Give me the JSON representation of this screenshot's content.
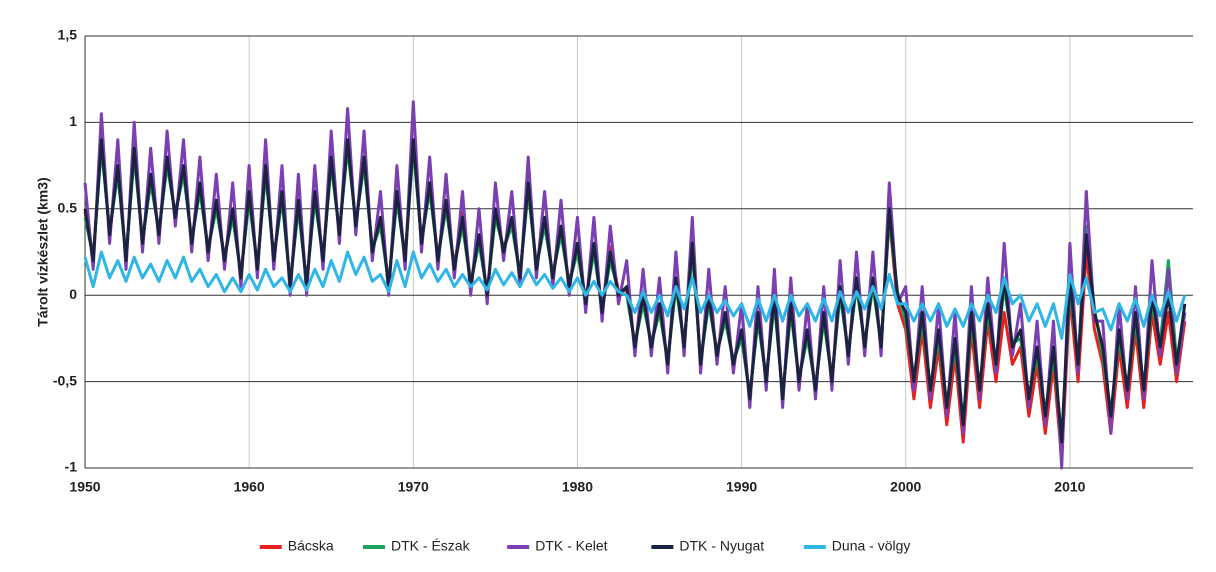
{
  "chart_data": {
    "type": "line",
    "y_label": "Tárolt vízkészlet (km3)",
    "xlim": [
      1950,
      2017.5
    ],
    "xticks": [
      1950,
      1960,
      1970,
      1980,
      1990,
      2000,
      2010
    ],
    "ylim": [
      -1,
      1.5
    ],
    "yticks": [
      {
        "value": -1,
        "label": "-1"
      },
      {
        "value": -0.5,
        "label": "-0,5"
      },
      0,
      0.5,
      1,
      {
        "value": 1.5,
        "label": "1,5"
      }
    ],
    "ylabels_override": null,
    "grid": true,
    "legend": "bottom",
    "x": [
      1950,
      1950.5,
      1951,
      1951.5,
      1952,
      1952.5,
      1953,
      1953.5,
      1954,
      1954.5,
      1955,
      1955.5,
      1956,
      1956.5,
      1957,
      1957.5,
      1958,
      1958.5,
      1959,
      1959.5,
      1960,
      1960.5,
      1961,
      1961.5,
      1962,
      1962.5,
      1963,
      1963.5,
      1964,
      1964.5,
      1965,
      1965.5,
      1966,
      1966.5,
      1967,
      1967.5,
      1968,
      1968.5,
      1969,
      1969.5,
      1970,
      1970.5,
      1971,
      1971.5,
      1972,
      1972.5,
      1973,
      1973.5,
      1974,
      1974.5,
      1975,
      1975.5,
      1976,
      1976.5,
      1977,
      1977.5,
      1978,
      1978.5,
      1979,
      1979.5,
      1980,
      1980.5,
      1981,
      1981.5,
      1982,
      1982.5,
      1983,
      1983.5,
      1984,
      1984.5,
      1985,
      1985.5,
      1986,
      1986.5,
      1987,
      1987.5,
      1988,
      1988.5,
      1989,
      1989.5,
      1990,
      1990.5,
      1991,
      1991.5,
      1992,
      1992.5,
      1993,
      1993.5,
      1994,
      1994.5,
      1995,
      1995.5,
      1996,
      1996.5,
      1997,
      1997.5,
      1998,
      1998.5,
      1999,
      1999.5,
      2000,
      2000.5,
      2001,
      2001.5,
      2002,
      2002.5,
      2003,
      2003.5,
      2004,
      2004.5,
      2005,
      2005.5,
      2006,
      2006.5,
      2007,
      2007.5,
      2008,
      2008.5,
      2009,
      2009.5,
      2010,
      2010.5,
      2011,
      2011.5,
      2012,
      2012.5,
      2013,
      2013.5,
      2014,
      2014.5,
      2015,
      2015.5,
      2016,
      2016.5,
      2017
    ],
    "series": [
      {
        "name": "Bácska",
        "color": "#e8211f",
        "values": [
          0.48,
          0.22,
          0.88,
          0.37,
          0.73,
          0.22,
          0.83,
          0.32,
          0.68,
          0.37,
          0.78,
          0.47,
          0.73,
          0.32,
          0.63,
          0.27,
          0.53,
          0.22,
          0.48,
          0.12,
          0.58,
          0.17,
          0.73,
          0.22,
          0.58,
          0.07,
          0.53,
          0.07,
          0.58,
          0.22,
          0.78,
          0.37,
          0.88,
          0.42,
          0.78,
          0.27,
          0.43,
          0.07,
          0.58,
          0.22,
          0.88,
          0.32,
          0.63,
          0.22,
          0.53,
          0.17,
          0.48,
          0.07,
          0.33,
          0.02,
          0.48,
          0.27,
          0.43,
          0.12,
          0.63,
          0.17,
          0.43,
          0.12,
          0.38,
          0.07,
          0.28,
          -0.03,
          0.28,
          -0.08,
          0.28,
          0.02,
          0.03,
          -0.28,
          -0.02,
          -0.28,
          -0.07,
          -0.38,
          0.08,
          -0.28,
          0.28,
          -0.38,
          -0.02,
          -0.33,
          -0.12,
          -0.38,
          -0.22,
          -0.58,
          -0.12,
          -0.48,
          -0.02,
          -0.58,
          -0.07,
          -0.48,
          -0.22,
          -0.53,
          -0.12,
          -0.48,
          0.03,
          -0.33,
          0.08,
          -0.28,
          0.08,
          -0.28,
          0.45,
          -0.05,
          -0.2,
          -0.6,
          -0.2,
          -0.65,
          -0.3,
          -0.75,
          -0.35,
          -0.85,
          -0.2,
          -0.65,
          -0.15,
          -0.5,
          -0.1,
          -0.4,
          -0.3,
          -0.7,
          -0.4,
          -0.8,
          -0.4,
          -0.95,
          0,
          -0.5,
          0.25,
          -0.2,
          -0.4,
          -0.8,
          -0.3,
          -0.65,
          -0.2,
          -0.65,
          -0.1,
          -0.4,
          -0.1,
          -0.5,
          -0.15
        ]
      },
      {
        "name": "DTK - Észak",
        "color": "#1aa35a",
        "values": [
          0.45,
          0.22,
          0.85,
          0.37,
          0.7,
          0.22,
          0.8,
          0.32,
          0.65,
          0.37,
          0.75,
          0.47,
          0.7,
          0.32,
          0.6,
          0.27,
          0.5,
          0.22,
          0.45,
          0.12,
          0.55,
          0.17,
          0.7,
          0.22,
          0.55,
          0.07,
          0.5,
          0.07,
          0.55,
          0.22,
          0.75,
          0.37,
          0.85,
          0.42,
          0.75,
          0.27,
          0.4,
          0.07,
          0.55,
          0.22,
          0.85,
          0.32,
          0.6,
          0.22,
          0.5,
          0.17,
          0.4,
          0.07,
          0.3,
          0.02,
          0.45,
          0.27,
          0.4,
          0.12,
          0.6,
          0.17,
          0.4,
          0.12,
          0.35,
          0.07,
          0.25,
          -0.03,
          0.25,
          -0.08,
          0.2,
          0.02,
          0,
          -0.28,
          -0.05,
          -0.28,
          -0.1,
          -0.38,
          0.05,
          -0.28,
          0.25,
          -0.38,
          -0.05,
          -0.33,
          -0.15,
          -0.38,
          -0.25,
          -0.58,
          -0.15,
          -0.48,
          -0.05,
          -0.58,
          -0.1,
          -0.48,
          -0.25,
          -0.53,
          -0.15,
          -0.48,
          0,
          -0.33,
          0.05,
          -0.28,
          0.05,
          -0.28,
          0.45,
          0.02,
          -0.15,
          -0.48,
          -0.15,
          -0.53,
          -0.25,
          -0.63,
          -0.3,
          -0.73,
          -0.15,
          -0.53,
          -0.1,
          -0.38,
          0.05,
          -0.28,
          -0.25,
          -0.58,
          -0.35,
          -0.68,
          -0.35,
          -0.83,
          0.05,
          -0.38,
          0.4,
          -0.08,
          -0.35,
          -0.68,
          -0.25,
          -0.53,
          -0.15,
          -0.53,
          -0.05,
          -0.28,
          0.2,
          -0.38,
          -0.1
        ]
      },
      {
        "name": "DTK - Kelet",
        "color": "#7b3fb3",
        "values": [
          0.65,
          0.15,
          1.05,
          0.3,
          0.9,
          0.15,
          1,
          0.25,
          0.85,
          0.3,
          0.95,
          0.4,
          0.9,
          0.25,
          0.8,
          0.2,
          0.7,
          0.15,
          0.65,
          0.05,
          0.75,
          0.1,
          0.9,
          0.15,
          0.75,
          0,
          0.7,
          0,
          0.75,
          0.15,
          0.95,
          0.3,
          1.08,
          0.35,
          0.95,
          0.2,
          0.6,
          0,
          0.75,
          0.15,
          1.12,
          0.25,
          0.8,
          0.15,
          0.7,
          0.1,
          0.6,
          0,
          0.5,
          -0.05,
          0.65,
          0.2,
          0.6,
          0.05,
          0.8,
          0.1,
          0.6,
          0.05,
          0.55,
          0,
          0.45,
          -0.1,
          0.45,
          -0.15,
          0.4,
          -0.05,
          0.2,
          -0.35,
          0.15,
          -0.35,
          0.1,
          -0.45,
          0.25,
          -0.35,
          0.45,
          -0.45,
          0.15,
          -0.4,
          0.05,
          -0.45,
          -0.05,
          -0.65,
          0.05,
          -0.55,
          0.15,
          -0.65,
          0.1,
          -0.55,
          -0.05,
          -0.6,
          0.05,
          -0.55,
          0.2,
          -0.4,
          0.25,
          -0.35,
          0.25,
          -0.35,
          0.65,
          -0.05,
          0.05,
          -0.55,
          0.05,
          -0.6,
          -0.05,
          -0.7,
          -0.1,
          -0.8,
          0.05,
          -0.6,
          0.1,
          -0.45,
          0.3,
          -0.35,
          -0.05,
          -0.65,
          -0.15,
          -0.75,
          -0.15,
          -1,
          0.3,
          -0.45,
          0.6,
          -0.15,
          -0.15,
          -0.8,
          -0.05,
          -0.6,
          0.05,
          -0.6,
          0.2,
          -0.35,
          0.15,
          -0.45,
          -0.1
        ]
      },
      {
        "name": "DTK - Nyugat",
        "color": "#1a2440",
        "values": [
          0.5,
          0.2,
          0.9,
          0.35,
          0.75,
          0.2,
          0.85,
          0.3,
          0.7,
          0.35,
          0.8,
          0.45,
          0.75,
          0.3,
          0.65,
          0.25,
          0.55,
          0.2,
          0.5,
          0.1,
          0.6,
          0.15,
          0.75,
          0.2,
          0.6,
          0.05,
          0.55,
          0.05,
          0.6,
          0.2,
          0.8,
          0.35,
          0.9,
          0.4,
          0.8,
          0.25,
          0.45,
          0.05,
          0.6,
          0.2,
          0.9,
          0.3,
          0.65,
          0.2,
          0.55,
          0.15,
          0.45,
          0.05,
          0.35,
          0,
          0.5,
          0.25,
          0.45,
          0.1,
          0.65,
          0.15,
          0.45,
          0.1,
          0.4,
          0.05,
          0.3,
          -0.05,
          0.3,
          -0.1,
          0.25,
          0,
          0.05,
          -0.3,
          0,
          -0.3,
          -0.05,
          -0.4,
          0.1,
          -0.3,
          0.3,
          -0.4,
          0,
          -0.35,
          -0.1,
          -0.4,
          -0.2,
          -0.6,
          -0.1,
          -0.5,
          0,
          -0.6,
          -0.05,
          -0.5,
          -0.2,
          -0.55,
          -0.1,
          -0.5,
          0.05,
          -0.35,
          0.1,
          -0.3,
          0.1,
          -0.3,
          0.5,
          0,
          -0.1,
          -0.5,
          -0.1,
          -0.55,
          -0.2,
          -0.65,
          -0.25,
          -0.75,
          -0.1,
          -0.55,
          -0.05,
          -0.4,
          0.1,
          -0.3,
          -0.2,
          -0.6,
          -0.3,
          -0.7,
          -0.3,
          -0.85,
          0.1,
          -0.4,
          0.35,
          -0.1,
          -0.3,
          -0.7,
          -0.2,
          -0.55,
          -0.1,
          -0.55,
          0,
          -0.3,
          0,
          -0.4,
          -0.05
        ]
      },
      {
        "name": "Duna - völgy",
        "color": "#2fb5e6",
        "values": [
          0.22,
          0.05,
          0.25,
          0.1,
          0.2,
          0.08,
          0.22,
          0.1,
          0.18,
          0.08,
          0.2,
          0.1,
          0.22,
          0.08,
          0.15,
          0.05,
          0.12,
          0.02,
          0.1,
          0.02,
          0.12,
          0.03,
          0.15,
          0.05,
          0.1,
          0.02,
          0.12,
          0.03,
          0.15,
          0.05,
          0.2,
          0.08,
          0.25,
          0.12,
          0.22,
          0.08,
          0.12,
          0.02,
          0.2,
          0.05,
          0.25,
          0.1,
          0.18,
          0.08,
          0.15,
          0.05,
          0.12,
          0.05,
          0.1,
          0.03,
          0.15,
          0.06,
          0.13,
          0.05,
          0.15,
          0.06,
          0.12,
          0.04,
          0.1,
          0.02,
          0.1,
          0,
          0.08,
          0,
          0.08,
          0.02,
          0,
          -0.1,
          0.02,
          -0.1,
          0,
          -0.12,
          0.05,
          -0.08,
          0.1,
          -0.1,
          0,
          -0.1,
          -0.03,
          -0.12,
          -0.05,
          -0.18,
          -0.02,
          -0.15,
          0,
          -0.15,
          0,
          -0.12,
          -0.05,
          -0.15,
          -0.02,
          -0.15,
          0.02,
          -0.1,
          0.02,
          -0.08,
          0.05,
          -0.08,
          0.12,
          -0.05,
          -0.05,
          -0.15,
          -0.05,
          -0.15,
          -0.05,
          -0.18,
          -0.08,
          -0.18,
          -0.05,
          -0.15,
          0,
          -0.1,
          0.1,
          -0.05,
          0,
          -0.15,
          -0.05,
          -0.18,
          -0.05,
          -0.25,
          0.12,
          -0.05,
          0.1,
          -0.1,
          -0.08,
          -0.2,
          -0.05,
          -0.15,
          -0.02,
          -0.18,
          0,
          -0.12,
          0.02,
          -0.15,
          0
        ]
      }
    ]
  }
}
